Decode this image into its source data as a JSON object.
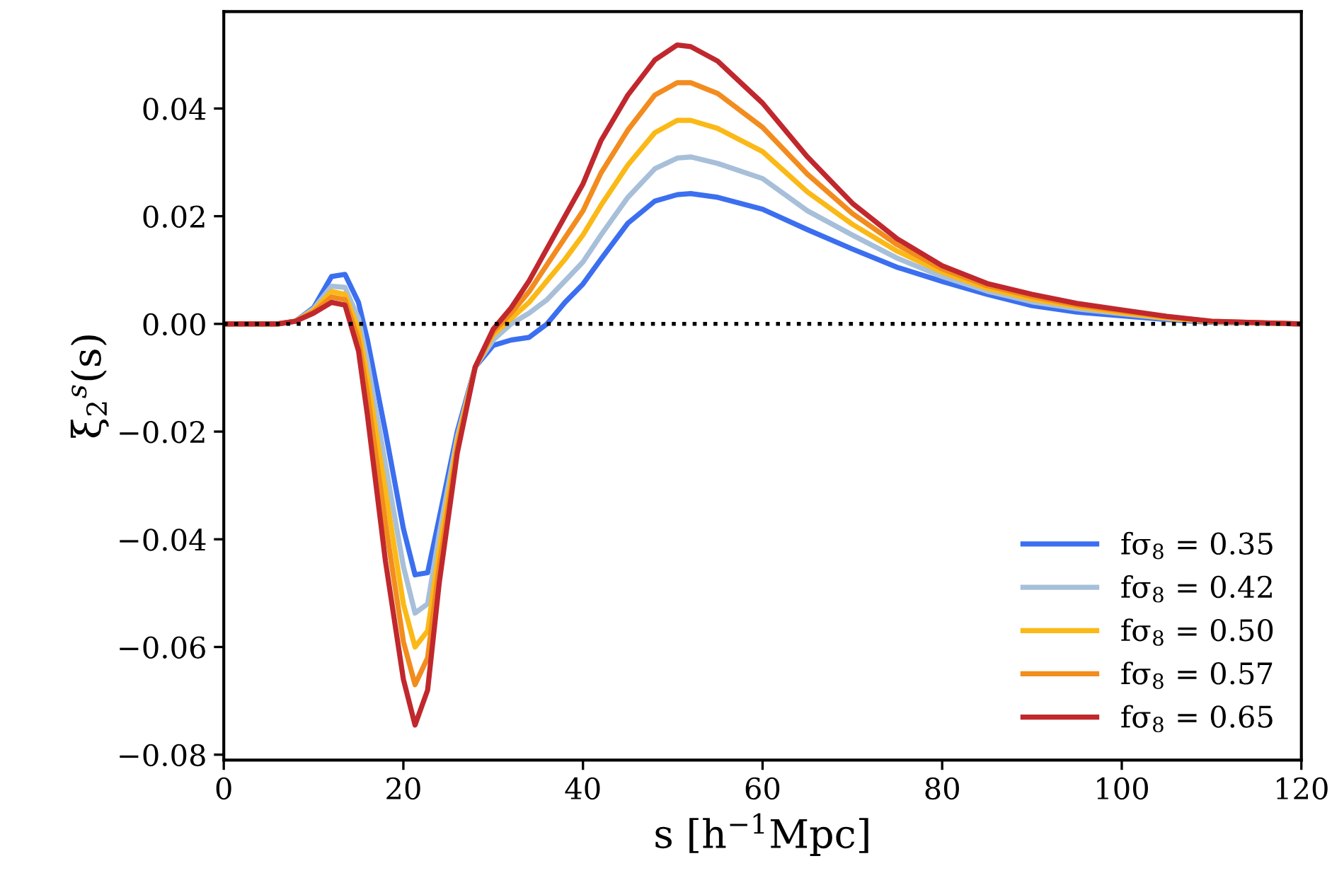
{
  "chart_data": {
    "type": "line",
    "xlabel": "s [h$^{−1}$Mpc]",
    "ylabel": "ξ$_{2}$$^{s}$(s)",
    "x": [
      0,
      6,
      8,
      10,
      12,
      13.5,
      15,
      16,
      18,
      20,
      21.3,
      22.7,
      24,
      26,
      28,
      30,
      32,
      34,
      36,
      38,
      40,
      42,
      45,
      48,
      50.5,
      52,
      55,
      60,
      65,
      70,
      75,
      80,
      85,
      90,
      95,
      100,
      105,
      110,
      120
    ],
    "series": [
      {
        "name": "fσ$_{8}$ = 0.35",
        "color": "#3b6ff0",
        "values": [
          0,
          0,
          0.0005,
          0.003,
          0.0088,
          0.0092,
          0.004,
          -0.003,
          -0.02,
          -0.038,
          -0.0466,
          -0.0462,
          -0.036,
          -0.02,
          -0.008,
          -0.004,
          -0.003,
          -0.0025,
          0.0,
          0.004,
          0.0074,
          0.012,
          0.0187,
          0.0228,
          0.024,
          0.0242,
          0.0235,
          0.0213,
          0.0175,
          0.0139,
          0.0105,
          0.0079,
          0.0055,
          0.0034,
          0.0022,
          0.0015,
          0.0008,
          0.0003,
          0
        ]
      },
      {
        "name": "fσ$_{8}$ = 0.42",
        "color": "#a7bfd9",
        "values": [
          0,
          0,
          0.0005,
          0.0028,
          0.007,
          0.0068,
          0.001,
          -0.007,
          -0.026,
          -0.045,
          -0.0537,
          -0.052,
          -0.039,
          -0.021,
          -0.008,
          -0.003,
          0.0,
          0.002,
          0.0045,
          0.008,
          0.0115,
          0.0165,
          0.0235,
          0.0288,
          0.0308,
          0.031,
          0.0298,
          0.027,
          0.021,
          0.0165,
          0.0122,
          0.0088,
          0.0061,
          0.0041,
          0.0028,
          0.0019,
          0.001,
          0.0004,
          0
        ]
      },
      {
        "name": "fσ$_{8}$ = 0.50",
        "color": "#fbb917",
        "values": [
          0,
          0,
          0.0005,
          0.0025,
          0.006,
          0.0055,
          -0.001,
          -0.01,
          -0.031,
          -0.052,
          -0.06,
          -0.057,
          -0.042,
          -0.022,
          -0.008,
          -0.002,
          0.001,
          0.004,
          0.008,
          0.012,
          0.0165,
          0.022,
          0.0295,
          0.0355,
          0.0378,
          0.0378,
          0.0363,
          0.032,
          0.0245,
          0.0185,
          0.0135,
          0.0096,
          0.0066,
          0.0046,
          0.0032,
          0.0021,
          0.0011,
          0.0004,
          0
        ]
      },
      {
        "name": "fσ$_{8}$ = 0.57",
        "color": "#f28c1e",
        "values": [
          0,
          0,
          0.0005,
          0.0022,
          0.005,
          0.0045,
          -0.003,
          -0.013,
          -0.037,
          -0.059,
          -0.067,
          -0.062,
          -0.045,
          -0.023,
          -0.008,
          -0.0015,
          0.002,
          0.006,
          0.011,
          0.016,
          0.021,
          0.028,
          0.036,
          0.0425,
          0.0448,
          0.0448,
          0.0428,
          0.0365,
          0.0278,
          0.0205,
          0.0147,
          0.0102,
          0.0071,
          0.0051,
          0.0035,
          0.0024,
          0.0013,
          0.0005,
          0
        ]
      },
      {
        "name": "fσ$_{8}$ = 0.65",
        "color": "#c0282d",
        "values": [
          0,
          0,
          0.0005,
          0.002,
          0.004,
          0.0035,
          -0.005,
          -0.017,
          -0.044,
          -0.066,
          -0.0745,
          -0.068,
          -0.048,
          -0.024,
          -0.008,
          -0.001,
          0.003,
          0.008,
          0.014,
          0.02,
          0.026,
          0.034,
          0.0425,
          0.049,
          0.0518,
          0.0515,
          0.0488,
          0.041,
          0.031,
          0.0224,
          0.0158,
          0.0108,
          0.0075,
          0.0055,
          0.0038,
          0.0026,
          0.0014,
          0.0005,
          0
        ]
      }
    ],
    "xlim": [
      0,
      120
    ],
    "xticks": [
      0,
      20,
      40,
      60,
      80,
      100,
      120
    ],
    "ylim": [
      -0.081,
      0.058
    ],
    "yticks": [
      {
        "value": -0.08,
        "label": "−0.08"
      },
      {
        "value": -0.06,
        "label": "−0.06"
      },
      {
        "value": -0.04,
        "label": "−0.04"
      },
      {
        "value": -0.02,
        "label": "−0.02"
      },
      {
        "value": 0,
        "label": "0.00"
      },
      {
        "value": 0.02,
        "label": "0.02"
      },
      {
        "value": 0.04,
        "label": "0.04"
      }
    ],
    "ref_lines": [
      {
        "axis": "y",
        "value": 0,
        "color": "#000000",
        "line_style": "dotted"
      }
    ],
    "grid": false,
    "legend": "bottom right",
    "marker": "none",
    "line_style": "solid"
  }
}
